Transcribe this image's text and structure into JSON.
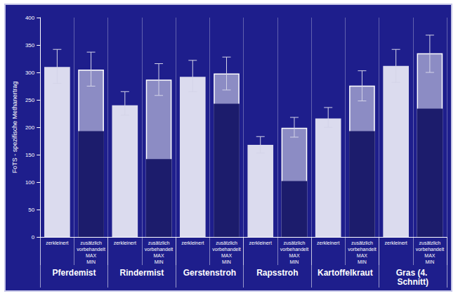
{
  "chart_data": {
    "type": "bar",
    "y_label": "FoTS - spezifische Methanertrag",
    "categories": [
      "Pferdemist",
      "Rindermist",
      "Gerstenstroh",
      "Rapsstroh",
      "Kartoffelkraut",
      "Gras (4. Schnitt)"
    ],
    "series": [
      {
        "name": "zerkleinert",
        "color": "#ececf6",
        "values": [
          310,
          240,
          292,
          168,
          216,
          312
        ],
        "error_low": [
          280,
          222,
          265,
          153,
          200,
          282
        ],
        "error_high": [
          342,
          265,
          322,
          183,
          236,
          342
        ]
      },
      {
        "name": "MAX",
        "group": "zusätzlich vorbehandelt",
        "color": "#8c8cc4",
        "values": [
          305,
          287,
          298,
          199,
          276,
          335
        ],
        "error_low": [
          275,
          258,
          268,
          182,
          248,
          300
        ],
        "error_high": [
          337,
          316,
          328,
          218,
          303,
          368
        ]
      },
      {
        "name": "MIN",
        "group": "zusätzlich vorbehandelt",
        "color": "#1c1c6c",
        "values": [
          193,
          142,
          243,
          102,
          193,
          234
        ]
      }
    ],
    "ylim": [
      0,
      400
    ],
    "yticks": [
      0,
      50,
      100,
      150,
      200,
      250,
      300,
      350,
      400
    ],
    "grid": false
  }
}
